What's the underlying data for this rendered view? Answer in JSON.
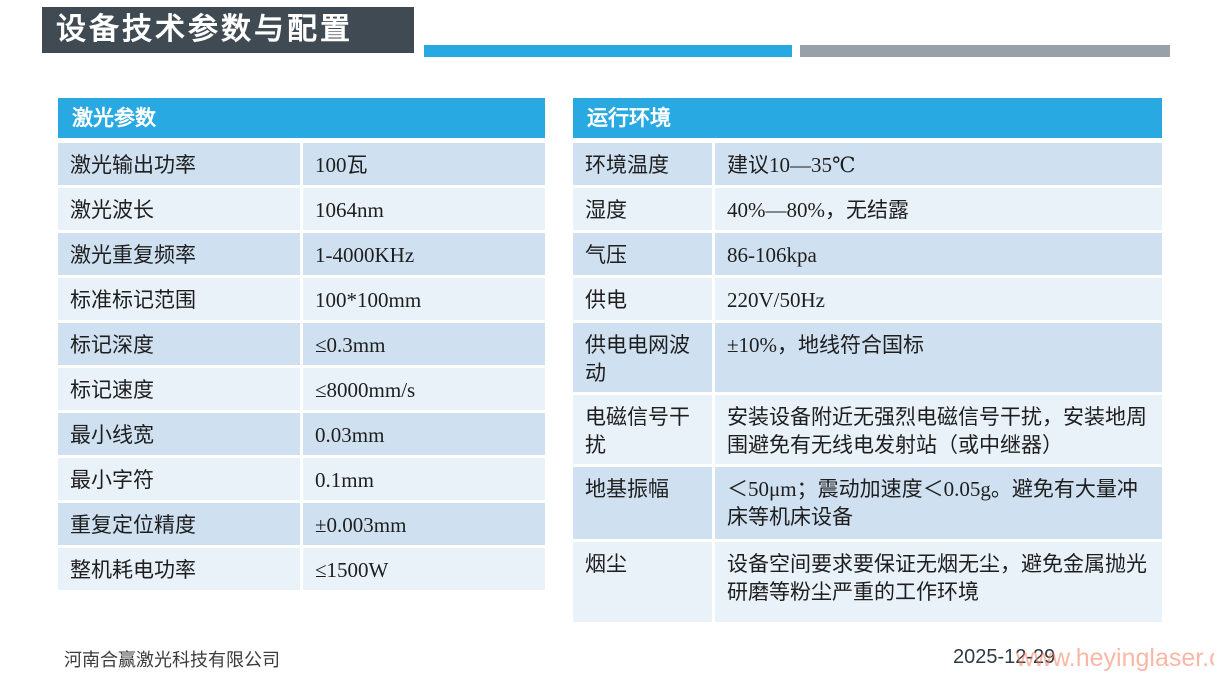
{
  "header": {
    "title": "设备技术参数与配置"
  },
  "tables": {
    "laser": {
      "title": "激光参数",
      "rows": [
        {
          "label": "激光输出功率",
          "value": "100瓦"
        },
        {
          "label": "激光波长",
          "value": "1064nm"
        },
        {
          "label": "激光重复频率",
          "value": "1-4000KHz"
        },
        {
          "label": "标准标记范围",
          "value": "100*100mm"
        },
        {
          "label": "标记深度",
          "value": "≤0.3mm"
        },
        {
          "label": "标记速度",
          "value": "≤8000mm/s"
        },
        {
          "label": "最小线宽",
          "value": "0.03mm"
        },
        {
          "label": "最小字符",
          "value": "0.1mm"
        },
        {
          "label": "重复定位精度",
          "value": "±0.003mm"
        },
        {
          "label": "整机耗电功率",
          "value": "≤1500W"
        }
      ]
    },
    "environment": {
      "title": "运行环境",
      "rows": [
        {
          "label": "环境温度",
          "value": "建议10—35℃"
        },
        {
          "label": "湿度",
          "value": "40%—80%，无结露"
        },
        {
          "label": "气压",
          "value": "86-106kpa"
        },
        {
          "label": "供电",
          "value": "220V/50Hz"
        },
        {
          "label": "供电电网波动",
          "value": "±10%，地线符合国标"
        },
        {
          "label": "电磁信号干扰",
          "value": "安装设备附近无强烈电磁信号干扰，安装地周围避免有无线电发射站（或中继器）"
        },
        {
          "label": "地基振幅",
          "value": "＜50μm；震动加速度＜0.05g。避免有大量冲床等机床设备"
        },
        {
          "label": "烟尘",
          "value": "设备空间要求要保证无烟无尘，避免金属抛光研磨等粉尘严重的工作环境"
        }
      ]
    }
  },
  "footer": {
    "company": "河南合赢激光科技有限公司",
    "date": "2025-12-29",
    "watermark": "www.heyinglaser.com"
  },
  "colors": {
    "title_bg": "#3f4a52",
    "accent_blue": "#29a9e1",
    "bar_gray": "#98a0aa",
    "row_dark": "#cfe0f1",
    "row_light": "#e9f1f9",
    "watermark_orange": "#f47d5d"
  }
}
